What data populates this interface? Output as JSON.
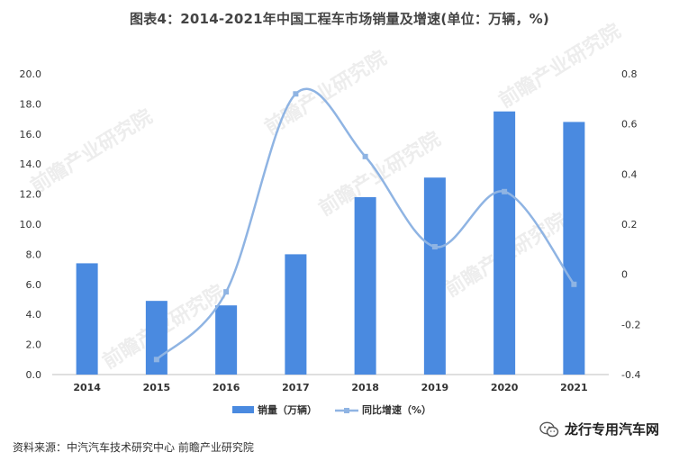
{
  "title": "图表4：2014-2021年中国工程车市场销量及增速(单位：万辆，%)",
  "source": "资料来源：中汽汽车技术研究中心 前瞻产业研究院",
  "brand": {
    "name": "龙行专用汽车网",
    "icon": "wechat-icon"
  },
  "watermark": "前瞻产业研究院",
  "colors": {
    "bar": "#4a8ae0",
    "line": "#8fb4e3",
    "axis": "#bfbfbf",
    "text": "#333333"
  },
  "chart_data": {
    "type": "bar",
    "categories": [
      "2014",
      "2015",
      "2016",
      "2017",
      "2018",
      "2019",
      "2020",
      "2021"
    ],
    "series": [
      {
        "name": "销量（万辆）",
        "type": "bar",
        "axis": "left",
        "values": [
          7.4,
          4.9,
          4.6,
          8.0,
          11.8,
          13.1,
          17.5,
          16.8
        ]
      },
      {
        "name": "同比增速（%）",
        "type": "line",
        "axis": "right",
        "values": [
          null,
          -0.34,
          -0.07,
          0.72,
          0.47,
          0.11,
          0.33,
          -0.04
        ]
      }
    ],
    "y_left": {
      "min": 0,
      "max": 20,
      "step": 2,
      "tick_labels": [
        "0.0",
        "2.0",
        "4.0",
        "6.0",
        "8.0",
        "10.0",
        "12.0",
        "14.0",
        "16.0",
        "18.0",
        "20.0"
      ]
    },
    "y_right": {
      "min": -0.4,
      "max": 0.8,
      "step": 0.2,
      "tick_labels": [
        "-0.4",
        "-0.2",
        "0",
        "0.2",
        "0.4",
        "0.6",
        "0.8"
      ]
    },
    "legend_position": "bottom-center",
    "grid": false
  }
}
